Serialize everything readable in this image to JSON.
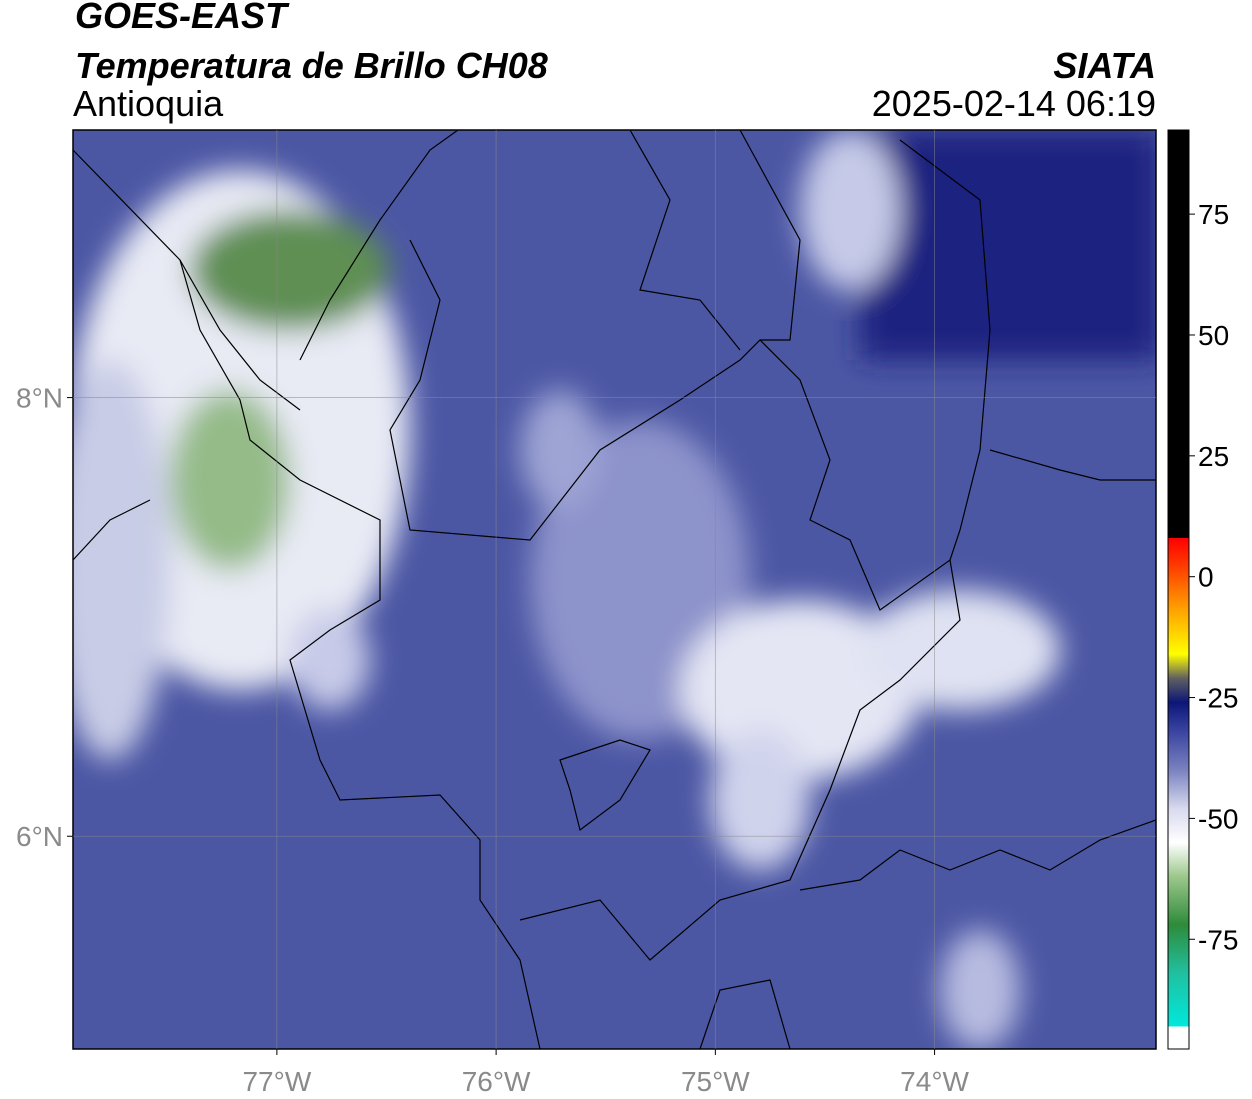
{
  "header": {
    "title": "GOES-EAST",
    "subtitle": "Temperatura de Brillo CH08",
    "region": "Antioquia",
    "source": "SIATA",
    "datetime": "2025-02-14 06:19"
  },
  "map": {
    "xlim": [
      -77.93,
      -72.99
    ],
    "ylim": [
      5.03,
      9.22
    ],
    "xticks": [
      {
        "value": -77,
        "label": "77°W"
      },
      {
        "value": -76,
        "label": "76°W"
      },
      {
        "value": -75,
        "label": "75°W"
      },
      {
        "value": -74,
        "label": "74°W"
      }
    ],
    "yticks": [
      {
        "value": 8,
        "label": "8°N"
      },
      {
        "value": 6,
        "label": "6°N"
      }
    ],
    "grid": true
  },
  "colorbar": {
    "lim": [
      -97.7,
      92.4
    ],
    "ticks": [
      75,
      50,
      25,
      0,
      -25,
      -50,
      -75
    ],
    "colormap": [
      [
        -97.7,
        "#ffffff"
      ],
      [
        -93,
        "#ffffff"
      ],
      [
        -93,
        "#00e8dc"
      ],
      [
        -82,
        "#20c0a0"
      ],
      [
        -72,
        "#2e8b3a"
      ],
      [
        -62,
        "#9cc88c"
      ],
      [
        -55,
        "#ffffff"
      ],
      [
        -48,
        "#d8daee"
      ],
      [
        -40,
        "#7a82c0"
      ],
      [
        -32,
        "#3a44a0"
      ],
      [
        -26,
        "#0c1678"
      ],
      [
        -21,
        "#606060"
      ],
      [
        -16,
        "#ffff00"
      ],
      [
        -6,
        "#ff9900"
      ],
      [
        3,
        "#ff3300"
      ],
      [
        8,
        "#ff0000"
      ],
      [
        8,
        "#000000"
      ],
      [
        92.4,
        "#000000"
      ]
    ]
  }
}
